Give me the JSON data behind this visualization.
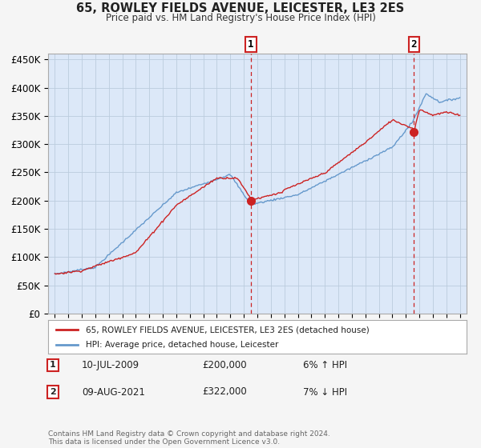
{
  "title": "65, ROWLEY FIELDS AVENUE, LEICESTER, LE3 2ES",
  "subtitle": "Price paid vs. HM Land Registry's House Price Index (HPI)",
  "legend_line1": "65, ROWLEY FIELDS AVENUE, LEICESTER, LE3 2ES (detached house)",
  "legend_line2": "HPI: Average price, detached house, Leicester",
  "footnote": "Contains HM Land Registry data © Crown copyright and database right 2024.\nThis data is licensed under the Open Government Licence v3.0.",
  "sale1_label": "1",
  "sale1_date": "10-JUL-2009",
  "sale1_price": "£200,000",
  "sale1_hpi": "6% ↑ HPI",
  "sale1_year": 2009.53,
  "sale1_value": 200000,
  "sale2_label": "2",
  "sale2_date": "09-AUG-2021",
  "sale2_price": "£322,000",
  "sale2_hpi": "7% ↓ HPI",
  "sale2_year": 2021.61,
  "sale2_value": 322000,
  "ylim": [
    0,
    460000
  ],
  "xlim_start": 1994.5,
  "xlim_end": 2025.5,
  "background_color": "#f5f5f5",
  "plot_bg_color": "#dce8f8",
  "red_color": "#cc2222",
  "blue_color": "#6699cc",
  "shade_color": "#dce8f8",
  "grid_color": "#bbccdd"
}
